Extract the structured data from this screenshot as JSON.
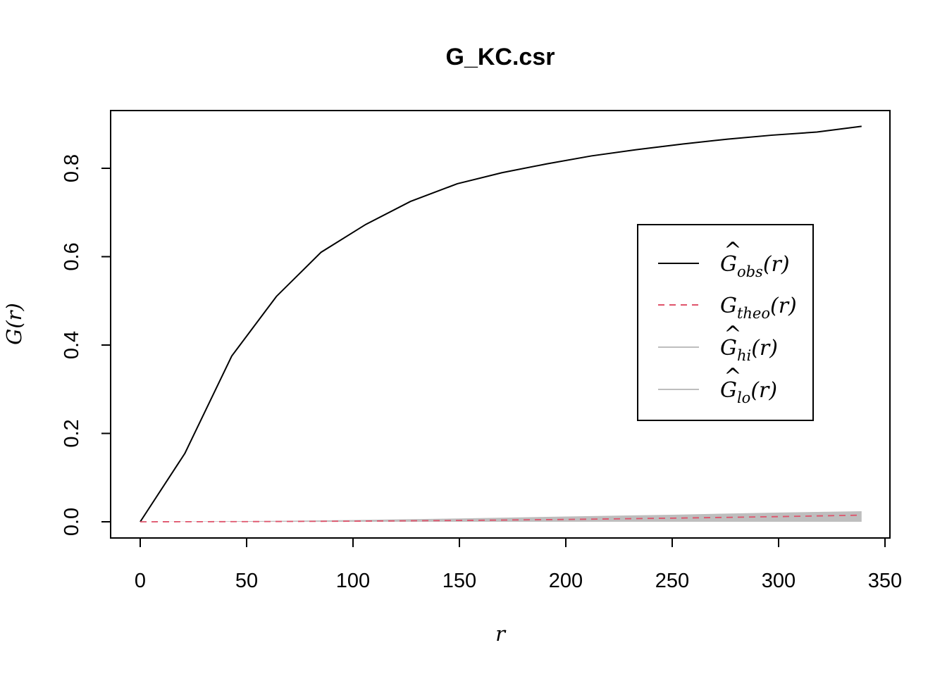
{
  "chart_data": {
    "type": "line",
    "title": "G_KC.csr",
    "xlabel": "r",
    "ylabel": "G(r)",
    "xlim": [
      0,
      350
    ],
    "ylim": [
      0,
      0.9
    ],
    "x_ticks": [
      "0",
      "50",
      "100",
      "150",
      "200",
      "250",
      "300",
      "350"
    ],
    "y_ticks": [
      "0.0",
      "0.2",
      "0.4",
      "0.6",
      "0.8"
    ],
    "legend_position": "right",
    "series": [
      {
        "name": "Ĝobs(r)",
        "color": "#000000",
        "style": "solid",
        "x": [
          0,
          21,
          43,
          64,
          85,
          106,
          127,
          149,
          170,
          191,
          212,
          233,
          255,
          276,
          297,
          318,
          339
        ],
        "y": [
          0.0,
          0.155,
          0.375,
          0.51,
          0.61,
          0.673,
          0.725,
          0.765,
          0.79,
          0.81,
          0.828,
          0.842,
          0.855,
          0.866,
          0.875,
          0.882,
          0.895
        ]
      },
      {
        "name": "Gtheo(r)",
        "color": "#DF536B",
        "style": "dashed",
        "x": [
          0,
          50,
          100,
          150,
          200,
          250,
          300,
          339
        ],
        "y": [
          0.0,
          0.0004,
          0.0014,
          0.003,
          0.0053,
          0.0082,
          0.0117,
          0.015
        ]
      },
      {
        "name": "Ĝhi(r)",
        "color": "#BEBEBE",
        "style": "band-upper",
        "x": [
          0,
          50,
          100,
          150,
          200,
          250,
          300,
          339
        ],
        "y": [
          0.0,
          0.0015,
          0.004,
          0.0075,
          0.012,
          0.016,
          0.021,
          0.024
        ]
      },
      {
        "name": "Ĝlo(r)",
        "color": "#BEBEBE",
        "style": "band-lower",
        "x": [
          0,
          50,
          100,
          150,
          200,
          250,
          300,
          339
        ],
        "y": [
          0.0,
          0.0,
          0.0,
          0.0,
          0.0,
          0.0,
          0.0,
          0.0
        ]
      }
    ],
    "legend": {
      "entries": [
        {
          "base": "G",
          "hat": true,
          "sub": "obs",
          "arg": "(r)",
          "color": "#000000",
          "dash": "none"
        },
        {
          "base": "G",
          "hat": false,
          "sub": "theo",
          "arg": "(r)",
          "color": "#DF536B",
          "dash": "9,7"
        },
        {
          "base": "G",
          "hat": true,
          "sub": "hi",
          "arg": "(r)",
          "color": "#BEBEBE",
          "dash": "none"
        },
        {
          "base": "G",
          "hat": true,
          "sub": "lo",
          "arg": "(r)",
          "color": "#BEBEBE",
          "dash": "none"
        }
      ]
    }
  }
}
